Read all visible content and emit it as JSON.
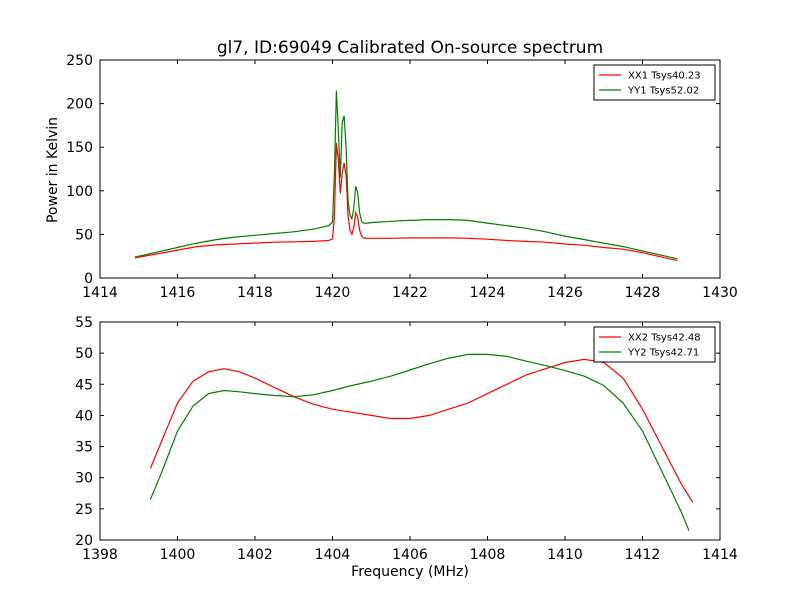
{
  "chart_data": [
    {
      "type": "line",
      "title": "gl7, ID:69049 Calibrated On-source spectrum",
      "xlabel": "",
      "ylabel": "Power in Kelvin",
      "xlim": [
        1414,
        1430
      ],
      "ylim": [
        0,
        250
      ],
      "xticks": [
        "1414",
        "1416",
        "1418",
        "1420",
        "1422",
        "1424",
        "1426",
        "1428",
        "1430"
      ],
      "yticks": [
        "0",
        "50",
        "100",
        "150",
        "200",
        "250"
      ],
      "legend_position": "top-right",
      "grid": false,
      "series": [
        {
          "name": "XX1 Tsys40.23",
          "color": "#ff0000",
          "x": [
            1414.9,
            1415.5,
            1416.0,
            1416.5,
            1417.0,
            1417.5,
            1418.0,
            1418.5,
            1419.0,
            1419.5,
            1419.9,
            1420.0,
            1420.05,
            1420.1,
            1420.15,
            1420.2,
            1420.25,
            1420.3,
            1420.35,
            1420.4,
            1420.45,
            1420.5,
            1420.55,
            1420.6,
            1420.65,
            1420.7,
            1420.75,
            1420.8,
            1420.9,
            1421.0,
            1421.5,
            1422.0,
            1422.5,
            1423.0,
            1423.5,
            1424.0,
            1424.5,
            1425.0,
            1425.5,
            1426.0,
            1426.5,
            1427.0,
            1427.5,
            1428.0,
            1428.5,
            1428.9
          ],
          "values": [
            23,
            28,
            32,
            36,
            38,
            39,
            40,
            41,
            41.5,
            42,
            43,
            45,
            70,
            155,
            135,
            97,
            120,
            132,
            118,
            72,
            55,
            50,
            58,
            75,
            70,
            55,
            48,
            46,
            45.5,
            45.5,
            45.5,
            46,
            46,
            46,
            45.5,
            44.5,
            43,
            42,
            41,
            39,
            37.5,
            35,
            33,
            29,
            24,
            20
          ]
        },
        {
          "name": "YY1 Tsys52.02",
          "color": "#008000",
          "x": [
            1414.9,
            1415.5,
            1416.0,
            1416.5,
            1417.0,
            1417.5,
            1418.0,
            1418.5,
            1419.0,
            1419.5,
            1419.9,
            1420.0,
            1420.05,
            1420.1,
            1420.15,
            1420.2,
            1420.25,
            1420.3,
            1420.35,
            1420.4,
            1420.45,
            1420.5,
            1420.55,
            1420.6,
            1420.65,
            1420.7,
            1420.75,
            1420.8,
            1420.9,
            1421.0,
            1421.5,
            1422.0,
            1422.5,
            1423.0,
            1423.5,
            1424.0,
            1424.5,
            1425.0,
            1425.5,
            1426.0,
            1426.5,
            1427.0,
            1427.5,
            1428.0,
            1428.5,
            1428.9
          ],
          "values": [
            24,
            30,
            35,
            40,
            44,
            47,
            49,
            51,
            53,
            56,
            60,
            64,
            120,
            215,
            170,
            115,
            178,
            186,
            150,
            90,
            72,
            68,
            80,
            105,
            98,
            75,
            65,
            63,
            63,
            63.5,
            65,
            66,
            67,
            67,
            66,
            63,
            60,
            57,
            53,
            48,
            44,
            40,
            36,
            31,
            26,
            22
          ]
        }
      ]
    },
    {
      "type": "line",
      "title": "",
      "xlabel": "Frequency (MHz)",
      "ylabel": "",
      "xlim": [
        1398,
        1414
      ],
      "ylim": [
        20,
        55
      ],
      "xticks": [
        "1398",
        "1400",
        "1402",
        "1404",
        "1406",
        "1408",
        "1410",
        "1412",
        "1414"
      ],
      "yticks": [
        "20",
        "25",
        "30",
        "35",
        "40",
        "45",
        "50",
        "55"
      ],
      "legend_position": "top-right",
      "grid": false,
      "series": [
        {
          "name": "XX2 Tsys42.48",
          "color": "#ff0000",
          "x": [
            1399.3,
            1399.6,
            1400.0,
            1400.4,
            1400.8,
            1401.2,
            1401.6,
            1402.0,
            1402.5,
            1403.0,
            1403.5,
            1404.0,
            1404.5,
            1405.0,
            1405.5,
            1406.0,
            1406.5,
            1407.0,
            1407.5,
            1408.0,
            1408.5,
            1409.0,
            1409.5,
            1410.0,
            1410.5,
            1411.0,
            1411.5,
            1412.0,
            1412.5,
            1413.0,
            1413.3
          ],
          "values": [
            31.5,
            36,
            42,
            45.5,
            47,
            47.5,
            47,
            46,
            44.5,
            43,
            41.8,
            41,
            40.5,
            40,
            39.5,
            39.5,
            40,
            41,
            42,
            43.5,
            45,
            46.5,
            47.5,
            48.5,
            49,
            48.5,
            46,
            41,
            35,
            29,
            26
          ]
        },
        {
          "name": "YY2 Tsys42.71",
          "color": "#008000",
          "x": [
            1399.3,
            1399.6,
            1400.0,
            1400.4,
            1400.8,
            1401.2,
            1401.6,
            1402.0,
            1402.5,
            1403.0,
            1403.5,
            1404.0,
            1404.5,
            1405.0,
            1405.5,
            1406.0,
            1406.5,
            1407.0,
            1407.5,
            1408.0,
            1408.5,
            1409.0,
            1409.5,
            1410.0,
            1410.5,
            1411.0,
            1411.5,
            1412.0,
            1412.5,
            1413.0,
            1413.2
          ],
          "values": [
            26.5,
            31,
            37.5,
            41.5,
            43.5,
            44,
            43.8,
            43.5,
            43.2,
            43,
            43.3,
            44,
            44.8,
            45.5,
            46.3,
            47.3,
            48.3,
            49.2,
            49.8,
            49.8,
            49.5,
            48.7,
            48,
            47.2,
            46.3,
            44.8,
            42,
            37.5,
            31,
            24.5,
            21.5
          ]
        }
      ]
    }
  ]
}
